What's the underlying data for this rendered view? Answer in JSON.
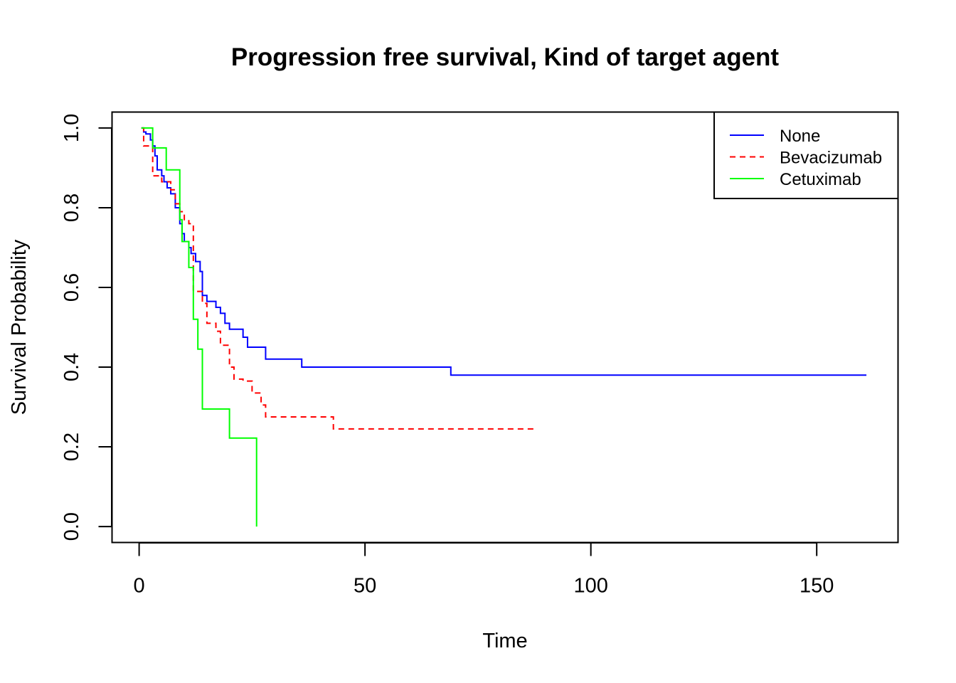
{
  "chart_data": {
    "type": "line",
    "subtype": "kaplan-meier-step",
    "title": "Progression free survival, Kind of target agent",
    "xlabel": "Time",
    "ylabel": "Survival Probability",
    "xlim": [
      -6,
      168
    ],
    "ylim": [
      -0.04,
      1.04
    ],
    "x_ticks": [
      0,
      50,
      100,
      150
    ],
    "x_tick_labels": [
      "0",
      "50",
      "100",
      "150"
    ],
    "y_ticks": [
      0.0,
      0.2,
      0.4,
      0.6,
      0.8,
      1.0
    ],
    "y_tick_labels": [
      "0.0",
      "0.2",
      "0.4",
      "0.6",
      "0.8",
      "1.0"
    ],
    "legend_position": "top-right",
    "grid": false,
    "series": [
      {
        "name": "None",
        "color": "#0000ff",
        "dash": "solid",
        "x": [
          0.5,
          1,
          1.5,
          2.5,
          3,
          3.5,
          4,
          5,
          5.5,
          6.2,
          7,
          8,
          9,
          9.5,
          10,
          11,
          11.5,
          12.5,
          13.5,
          14,
          15,
          17,
          18,
          19,
          20,
          22,
          23,
          24,
          28,
          36,
          69,
          161
        ],
        "y": [
          1.0,
          0.99,
          0.985,
          0.97,
          0.955,
          0.93,
          0.895,
          0.88,
          0.865,
          0.85,
          0.835,
          0.8,
          0.76,
          0.735,
          0.715,
          0.7,
          0.685,
          0.665,
          0.64,
          0.58,
          0.565,
          0.55,
          0.535,
          0.51,
          0.495,
          0.495,
          0.475,
          0.45,
          0.42,
          0.4,
          0.38,
          0.38
        ]
      },
      {
        "name": "Bevacizumab",
        "color": "#ff0000",
        "dash": "dashed",
        "x": [
          0.5,
          1,
          3,
          5,
          7,
          8,
          9,
          10,
          11,
          12,
          14,
          15,
          17,
          18,
          20,
          21,
          23,
          25,
          27,
          28,
          43,
          88
        ],
        "y": [
          1.0,
          0.955,
          0.88,
          0.865,
          0.845,
          0.81,
          0.79,
          0.77,
          0.76,
          0.59,
          0.56,
          0.51,
          0.49,
          0.455,
          0.4,
          0.37,
          0.365,
          0.335,
          0.305,
          0.275,
          0.245,
          0.245
        ]
      },
      {
        "name": "Cetuximab",
        "color": "#00ff00",
        "dash": "solid",
        "x": [
          0.5,
          3,
          6,
          9,
          9.5,
          10.5,
          11,
          12,
          13,
          14,
          20,
          26,
          26
        ],
        "y": [
          1.0,
          0.95,
          0.895,
          0.77,
          0.715,
          0.715,
          0.65,
          0.52,
          0.445,
          0.295,
          0.222,
          0.222,
          0.0
        ]
      }
    ]
  }
}
